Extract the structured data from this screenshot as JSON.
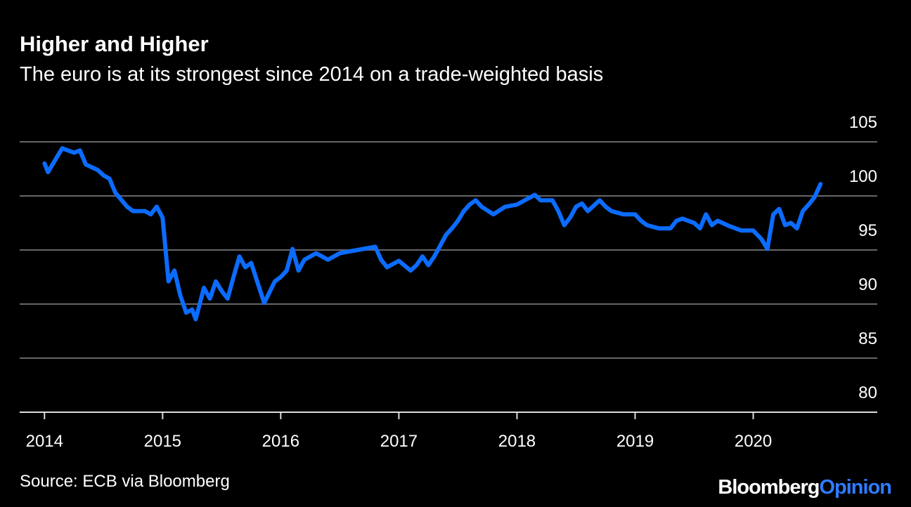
{
  "chart_data": {
    "type": "line",
    "title": "Higher and Higher",
    "subtitle": "The euro is at its strongest since 2014 on a trade-weighted basis",
    "source": "Source: ECB via Bloomberg",
    "brand": [
      "Bloomberg",
      "Opinion"
    ],
    "color": "#0b6cff",
    "x": [
      2014.0,
      2014.03,
      2014.1,
      2014.15,
      2014.25,
      2014.3,
      2014.35,
      2014.45,
      2014.5,
      2014.55,
      2014.6,
      2014.7,
      2014.75,
      2014.85,
      2014.9,
      2014.95,
      2015.0,
      2015.05,
      2015.1,
      2015.15,
      2015.2,
      2015.25,
      2015.28,
      2015.35,
      2015.4,
      2015.45,
      2015.5,
      2015.55,
      2015.6,
      2015.65,
      2015.7,
      2015.75,
      2015.8,
      2015.86,
      2015.95,
      2016.0,
      2016.05,
      2016.1,
      2016.15,
      2016.2,
      2016.3,
      2016.4,
      2016.5,
      2016.6,
      2016.7,
      2016.8,
      2016.85,
      2016.9,
      2017.0,
      2017.1,
      2017.15,
      2017.2,
      2017.25,
      2017.3,
      2017.35,
      2017.4,
      2017.45,
      2017.5,
      2017.55,
      2017.6,
      2017.65,
      2017.7,
      2017.8,
      2017.9,
      2018.0,
      2018.1,
      2018.15,
      2018.2,
      2018.3,
      2018.35,
      2018.4,
      2018.45,
      2018.5,
      2018.55,
      2018.6,
      2018.7,
      2018.75,
      2018.8,
      2018.9,
      2019.0,
      2019.05,
      2019.1,
      2019.2,
      2019.3,
      2019.35,
      2019.4,
      2019.5,
      2019.55,
      2019.6,
      2019.65,
      2019.7,
      2019.8,
      2019.9,
      2020.0,
      2020.07,
      2020.12,
      2020.17,
      2020.22,
      2020.27,
      2020.32,
      2020.37,
      2020.42,
      2020.47,
      2020.52,
      2020.57
    ],
    "values": [
      103.0,
      102.2,
      103.5,
      104.4,
      104.0,
      104.2,
      102.9,
      102.4,
      101.9,
      101.6,
      100.3,
      99.0,
      98.6,
      98.6,
      98.3,
      99.0,
      98.0,
      92.1,
      93.1,
      90.8,
      89.2,
      89.5,
      88.6,
      91.5,
      90.5,
      92.1,
      91.2,
      90.5,
      92.5,
      94.4,
      93.4,
      93.8,
      92.1,
      90.1,
      92.1,
      92.5,
      93.1,
      95.1,
      93.1,
      94.1,
      94.7,
      94.1,
      94.7,
      94.9,
      95.1,
      95.3,
      94.1,
      93.4,
      94.0,
      93.1,
      93.6,
      94.4,
      93.6,
      94.4,
      95.4,
      96.4,
      97.0,
      97.7,
      98.6,
      99.2,
      99.6,
      99.0,
      98.3,
      99.0,
      99.2,
      99.8,
      100.1,
      99.6,
      99.6,
      98.6,
      97.3,
      98.0,
      99.0,
      99.3,
      98.6,
      99.6,
      99.0,
      98.6,
      98.3,
      98.3,
      97.7,
      97.3,
      97.0,
      97.0,
      97.7,
      97.9,
      97.5,
      97.0,
      98.3,
      97.3,
      97.7,
      97.2,
      96.8,
      96.8,
      96.0,
      95.1,
      98.3,
      98.8,
      97.3,
      97.5,
      97.0,
      98.6,
      99.2,
      99.9,
      101.1
    ],
    "xlim": [
      2013.79,
      2021.05
    ],
    "xticks": [
      2014,
      2015,
      2016,
      2017,
      2018,
      2019,
      2020
    ],
    "ylim": [
      80,
      105
    ],
    "yticks": [
      80,
      85,
      90,
      95,
      100,
      105
    ],
    "grid": true
  }
}
